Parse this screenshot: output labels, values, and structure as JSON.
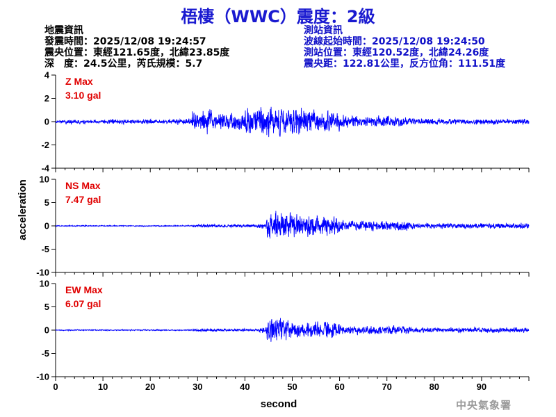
{
  "header": {
    "title": "梧棲（WWC）震度：2級"
  },
  "quake_info": {
    "heading": "地震資訊",
    "origin_time": "發震時間：2025/12/08 19:24:57",
    "epicenter": "震央位置：東經121.65度，北緯23.85度",
    "depth_magnitude": "深　度：24.5公里，芮氏規模：5.7"
  },
  "station_info": {
    "heading": "測站資訊",
    "wave_start": "波線起始時間：2025/12/08 19:24:50",
    "location": "測站位置：東經120.52度，北緯24.26度",
    "distance": "震央距：122.81公里，反方位角：111.51度"
  },
  "footer": {
    "agency": "中央氣象署"
  },
  "colors": {
    "title": "#1a1ad0",
    "trace": "#0000ff",
    "max_label": "#e00000",
    "axis": "#000000",
    "station_text": "#1010c8"
  },
  "chart_data": {
    "type": "line",
    "xlabel": "second",
    "ylabel": "acceleration",
    "xlim": [
      0,
      100
    ],
    "xticks": [
      0,
      10,
      20,
      30,
      40,
      50,
      60,
      70,
      80,
      90
    ],
    "panels": [
      {
        "name": "Z",
        "max_label": "Z Max",
        "max_value": "3.10 gal",
        "ylim": [
          -4,
          4
        ],
        "yticks": [
          -4,
          -2,
          0,
          2,
          4
        ],
        "trace": {
          "noise": 0.08,
          "sigma": 7,
          "seed": 11,
          "segments": [
            {
              "start": 0,
              "end": 28.8,
              "amp": 0.2
            },
            {
              "start": 28.8,
              "end": 33,
              "amp": 1.6
            },
            {
              "start": 33,
              "end": 40,
              "amp": 0.9
            },
            {
              "start": 40,
              "end": 52,
              "amp": 1.75
            },
            {
              "start": 52,
              "end": 60,
              "amp": 1.2
            },
            {
              "start": 60,
              "end": 75,
              "amp": 0.6
            },
            {
              "start": 75,
              "end": 100,
              "amp": 0.3
            }
          ]
        }
      },
      {
        "name": "NS",
        "max_label": "NS Max",
        "max_value": "7.47 gal",
        "ylim": [
          -10,
          10
        ],
        "yticks": [
          -10,
          -5,
          0,
          5,
          10
        ],
        "trace": {
          "noise": 0.05,
          "sigma": 3.5,
          "seed": 23,
          "segments": [
            {
              "start": 0,
              "end": 29,
              "amp": 0.12
            },
            {
              "start": 29,
              "end": 44.5,
              "amp": 0.45
            },
            {
              "start": 44.5,
              "end": 50,
              "amp": 4.5
            },
            {
              "start": 50,
              "end": 60,
              "amp": 3.0
            },
            {
              "start": 60,
              "end": 75,
              "amp": 1.5
            },
            {
              "start": 75,
              "end": 100,
              "amp": 0.8
            }
          ]
        }
      },
      {
        "name": "EW",
        "max_label": "EW Max",
        "max_value": "6.07 gal",
        "ylim": [
          -10,
          10
        ],
        "yticks": [
          -10,
          -5,
          0,
          5,
          10
        ],
        "trace": {
          "noise": 0.05,
          "sigma": 3.5,
          "seed": 37,
          "segments": [
            {
              "start": 0,
              "end": 29,
              "amp": 0.12
            },
            {
              "start": 29,
              "end": 44.5,
              "amp": 0.4
            },
            {
              "start": 44.5,
              "end": 50,
              "amp": 3.6
            },
            {
              "start": 50,
              "end": 60,
              "amp": 2.4
            },
            {
              "start": 60,
              "end": 75,
              "amp": 1.3
            },
            {
              "start": 75,
              "end": 100,
              "amp": 0.7
            }
          ]
        }
      }
    ]
  }
}
